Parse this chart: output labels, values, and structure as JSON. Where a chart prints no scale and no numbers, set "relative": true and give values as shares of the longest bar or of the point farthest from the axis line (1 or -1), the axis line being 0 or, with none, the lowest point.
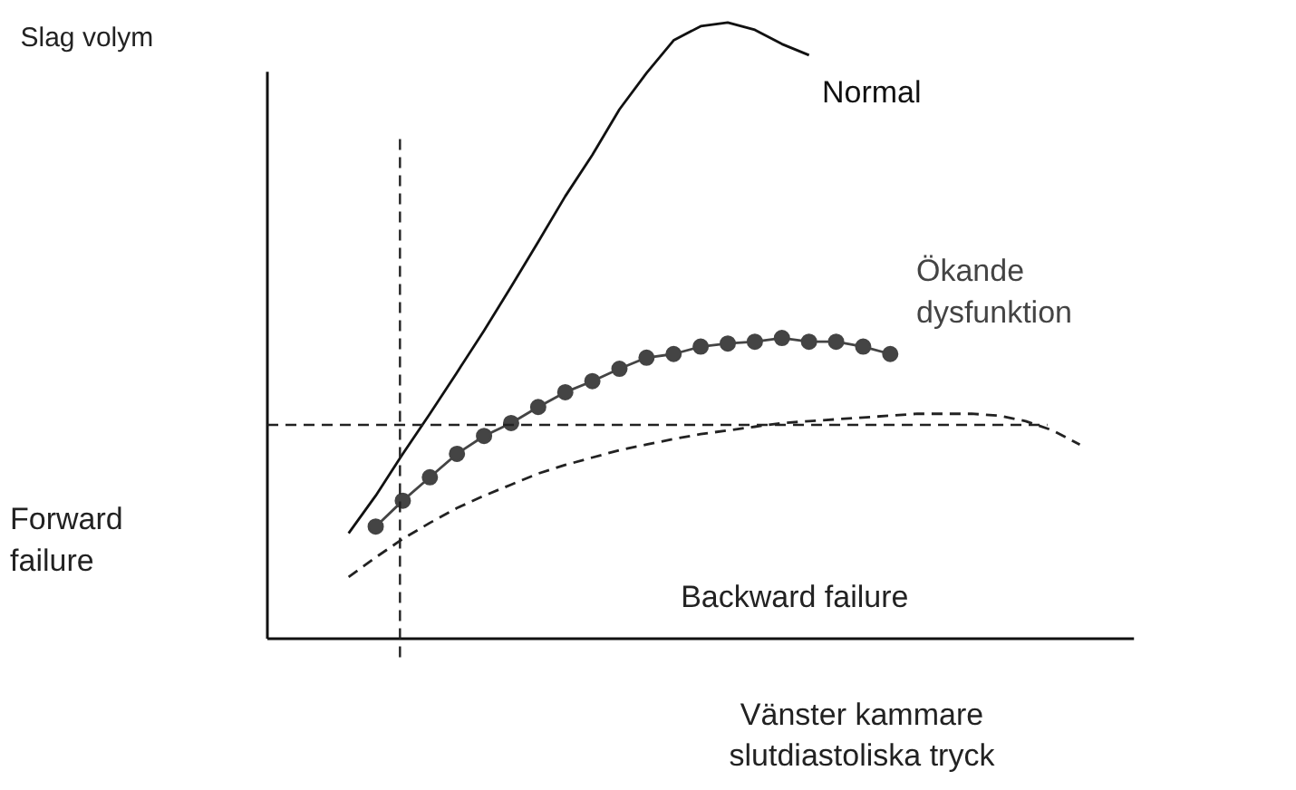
{
  "chart_data": {
    "type": "line",
    "relative": true,
    "xlabel": "Vänster kammare\nslutdiastoliska tryck",
    "ylabel": "Slag volym",
    "categories": [
      null,
      null,
      null,
      null,
      null,
      null,
      null,
      null,
      null,
      null,
      null,
      null,
      null,
      null,
      null,
      null,
      null,
      null,
      null,
      null,
      null,
      null,
      null,
      null,
      null,
      null,
      null,
      null,
      null,
      null,
      null,
      null,
      null
    ],
    "series": [
      {
        "name": "Normal",
        "color": "#111111",
        "line_style": "solid",
        "marker": "none",
        "values": [
          null,
          null,
          null,
          0.171,
          0.232,
          0.3,
          0.365,
          0.432,
          0.5,
          0.571,
          0.644,
          0.718,
          0.785,
          0.859,
          0.918,
          0.971,
          0.994,
          1.0,
          0.988,
          0.965,
          0.947,
          null,
          null,
          null,
          null,
          null,
          null,
          null,
          null,
          null,
          null,
          null,
          null
        ]
      },
      {
        "name": "Ökande\ndysfunktion",
        "color": "#444444",
        "line_style": "solid",
        "marker": "circle",
        "values": [
          null,
          null,
          null,
          null,
          0.182,
          0.224,
          0.262,
          0.3,
          0.329,
          0.35,
          0.376,
          0.4,
          0.418,
          0.438,
          0.456,
          0.462,
          0.474,
          0.479,
          0.482,
          0.488,
          0.482,
          0.482,
          0.474,
          0.462,
          null,
          null,
          null,
          null,
          null,
          null,
          null,
          null,
          null
        ]
      },
      {
        "color": "#222222",
        "line_style": "dashed",
        "marker": "none",
        "values": [
          null,
          null,
          null,
          0.1,
          0.132,
          0.162,
          0.188,
          0.212,
          0.232,
          0.25,
          0.268,
          0.282,
          0.294,
          0.306,
          0.315,
          0.324,
          0.332,
          0.338,
          0.344,
          0.35,
          0.353,
          0.356,
          0.359,
          0.362,
          0.365,
          0.365,
          0.365,
          0.362,
          0.353,
          0.338,
          0.315,
          null,
          null
        ]
      }
    ],
    "ref_lines": [
      {
        "axis": "y",
        "value": 0.347,
        "line_style": "dashed"
      }
    ],
    "annotations": [
      "Forward\nfailure",
      "Backward failure"
    ]
  }
}
